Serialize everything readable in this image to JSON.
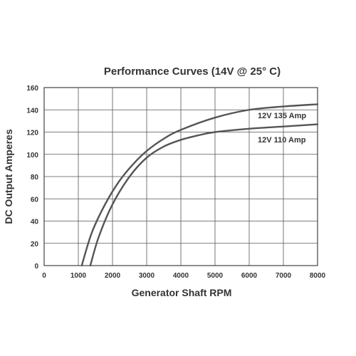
{
  "chart_data": {
    "type": "line",
    "title": "Performance Curves (14V @ 25° C)",
    "xlabel": "Generator Shaft RPM",
    "ylabel": "DC Output Amperes",
    "xlim": [
      0,
      8000
    ],
    "ylim": [
      0,
      160
    ],
    "xticks": [
      0,
      1000,
      2000,
      3000,
      4000,
      5000,
      6000,
      7000,
      8000
    ],
    "yticks": [
      0,
      20,
      40,
      60,
      80,
      100,
      120,
      140,
      160
    ],
    "grid": true,
    "series": [
      {
        "name": "12V 135 Amp",
        "x": [
          1100,
          1400,
          1800,
          2200,
          2600,
          3000,
          3500,
          4000,
          5000,
          6000,
          7000,
          8000
        ],
        "y": [
          0,
          30,
          56,
          76,
          91,
          103,
          114,
          122,
          133,
          140,
          143,
          145
        ]
      },
      {
        "name": "12V 110 Amp",
        "x": [
          1350,
          1600,
          2000,
          2500,
          3000,
          3500,
          4000,
          4500,
          5000,
          6000,
          7000,
          8000
        ],
        "y": [
          0,
          26,
          55,
          80,
          97,
          107,
          113,
          117,
          120,
          123,
          125,
          127
        ]
      }
    ],
    "colors": {
      "curve": "#555555",
      "grid": "#555555",
      "text": "#333333"
    }
  }
}
